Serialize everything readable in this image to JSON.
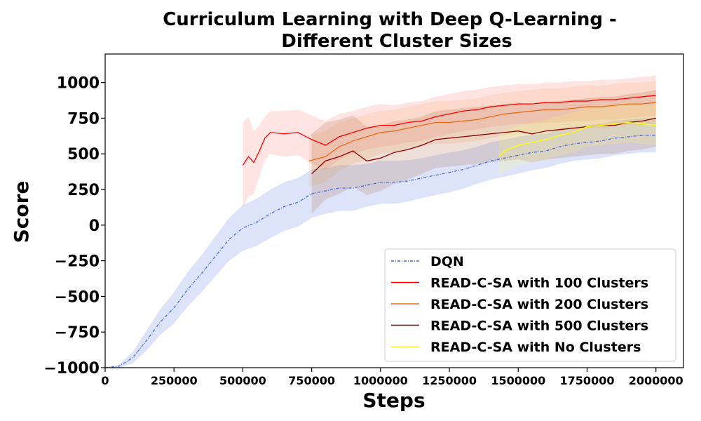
{
  "chart_data": {
    "type": "line",
    "title_lines": [
      "Curriculum Learning with Deep Q-Learning -",
      "Different Cluster Sizes"
    ],
    "xlabel": "Steps",
    "ylabel": "Score",
    "xlim": [
      0,
      2100000
    ],
    "ylim": [
      -1000,
      1200
    ],
    "xticks": [
      0,
      250000,
      500000,
      750000,
      1000000,
      1250000,
      1500000,
      1750000,
      2000000
    ],
    "xtick_labels": [
      "0",
      "250000",
      "500000",
      "750000",
      "1000000",
      "1250000",
      "1500000",
      "1750000",
      "2000000"
    ],
    "yticks": [
      -1000,
      -750,
      -500,
      -250,
      0,
      250,
      500,
      750,
      1000
    ],
    "ytick_labels": [
      "−1000",
      "−750",
      "−500",
      "−250",
      "0",
      "250",
      "500",
      "750",
      "1000"
    ],
    "grid": false,
    "legend_position": "lower-right",
    "series": [
      {
        "name": "DQN",
        "color": "#4169e1",
        "style": "dashdot",
        "band_color": "#4169e1",
        "x": [
          0,
          50000,
          100000,
          150000,
          200000,
          250000,
          300000,
          350000,
          400000,
          450000,
          500000,
          550000,
          600000,
          650000,
          700000,
          750000,
          800000,
          850000,
          900000,
          950000,
          1000000,
          1050000,
          1100000,
          1150000,
          1200000,
          1250000,
          1300000,
          1350000,
          1400000,
          1450000,
          1500000,
          1550000,
          1600000,
          1650000,
          1700000,
          1750000,
          1800000,
          1850000,
          1900000,
          1950000,
          2000000
        ],
        "y": [
          -1000,
          -990,
          -930,
          -810,
          -680,
          -580,
          -450,
          -340,
          -220,
          -100,
          -20,
          20,
          80,
          130,
          160,
          220,
          240,
          260,
          260,
          280,
          300,
          300,
          310,
          330,
          350,
          370,
          390,
          420,
          450,
          470,
          490,
          510,
          520,
          550,
          570,
          580,
          590,
          610,
          620,
          630,
          630
        ],
        "band": [
          0,
          10,
          40,
          70,
          90,
          110,
          120,
          130,
          140,
          150,
          160,
          165,
          170,
          170,
          170,
          170,
          160,
          160,
          160,
          150,
          150,
          150,
          145,
          140,
          140,
          140,
          135,
          130,
          130,
          130,
          130,
          125,
          120,
          120,
          120,
          120,
          120,
          120,
          120,
          120,
          120
        ]
      },
      {
        "name": "READ-C-SA with 100 Clusters",
        "color": "#ff0000",
        "style": "solid",
        "band_color": "#ff6b6b",
        "x": [
          500000,
          520000,
          540000,
          560000,
          580000,
          600000,
          650000,
          700000,
          750000,
          800000,
          850000,
          900000,
          950000,
          1000000,
          1050000,
          1100000,
          1150000,
          1200000,
          1250000,
          1300000,
          1350000,
          1400000,
          1450000,
          1500000,
          1550000,
          1600000,
          1650000,
          1700000,
          1750000,
          1800000,
          1850000,
          1900000,
          1950000,
          2000000
        ],
        "y": [
          420,
          480,
          440,
          520,
          610,
          650,
          640,
          650,
          600,
          560,
          620,
          650,
          680,
          700,
          700,
          720,
          730,
          760,
          780,
          800,
          810,
          830,
          840,
          850,
          850,
          860,
          860,
          870,
          870,
          880,
          880,
          890,
          900,
          910
        ],
        "band": [
          300,
          280,
          220,
          180,
          150,
          150,
          160,
          160,
          170,
          170,
          160,
          150,
          150,
          150,
          140,
          140,
          140,
          140,
          140,
          140,
          140,
          140,
          140,
          140,
          140,
          140,
          140,
          140,
          140,
          140,
          140,
          140,
          140,
          140
        ]
      },
      {
        "name": "READ-C-SA with 200 Clusters",
        "color": "#e86a17",
        "style": "solid",
        "band_color": "#f4a460",
        "x": [
          740000,
          800000,
          850000,
          900000,
          950000,
          1000000,
          1050000,
          1100000,
          1150000,
          1200000,
          1250000,
          1300000,
          1350000,
          1400000,
          1450000,
          1500000,
          1550000,
          1600000,
          1650000,
          1700000,
          1750000,
          1800000,
          1850000,
          1900000,
          1950000,
          2000000
        ],
        "y": [
          450,
          480,
          550,
          590,
          620,
          650,
          660,
          680,
          700,
          720,
          720,
          730,
          740,
          760,
          780,
          790,
          800,
          810,
          810,
          820,
          830,
          830,
          840,
          850,
          850,
          860
        ],
        "band": [
          180,
          180,
          170,
          160,
          160,
          150,
          150,
          150,
          150,
          150,
          150,
          150,
          150,
          150,
          150,
          150,
          150,
          150,
          150,
          150,
          150,
          150,
          150,
          150,
          150,
          150
        ]
      },
      {
        "name": "READ-C-SA with 500 Clusters",
        "color": "#8b0000",
        "style": "solid",
        "band_color": "#a0522d",
        "x": [
          750000,
          800000,
          850000,
          900000,
          950000,
          1000000,
          1050000,
          1100000,
          1150000,
          1200000,
          1250000,
          1300000,
          1350000,
          1400000,
          1450000,
          1500000,
          1550000,
          1600000,
          1650000,
          1700000,
          1750000,
          1800000,
          1850000,
          1900000,
          1950000,
          2000000
        ],
        "y": [
          360,
          450,
          480,
          520,
          450,
          470,
          510,
          530,
          560,
          600,
          610,
          620,
          630,
          640,
          650,
          660,
          640,
          660,
          670,
          680,
          690,
          700,
          700,
          720,
          730,
          750
        ],
        "band": [
          280,
          270,
          260,
          250,
          240,
          230,
          220,
          210,
          200,
          200,
          200,
          200,
          200,
          200,
          200,
          200,
          200,
          200,
          200,
          200,
          200,
          200,
          200,
          200,
          200,
          200
        ]
      },
      {
        "name": "READ-C-SA with No Clusters",
        "color": "#ffff00",
        "style": "solid",
        "band_color": "#ffff66",
        "x": [
          1430000,
          1450000,
          1500000,
          1550000,
          1600000,
          1650000,
          1700000,
          1750000,
          1800000,
          1850000,
          1900000,
          1950000,
          2000000
        ],
        "y": [
          480,
          520,
          560,
          580,
          600,
          630,
          650,
          690,
          700,
          710,
          720,
          710,
          700
        ],
        "band": [
          150,
          140,
          140,
          140,
          140,
          140,
          140,
          140,
          140,
          140,
          140,
          140,
          140
        ]
      }
    ]
  }
}
